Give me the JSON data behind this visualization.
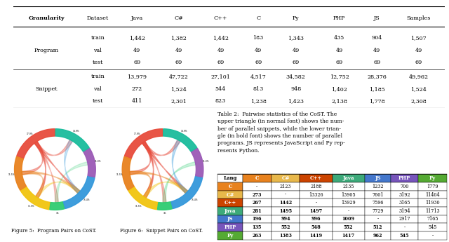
{
  "table1": {
    "title_row": [
      "Granularity",
      "Dataset",
      "Java",
      "C#",
      "C++",
      "C",
      "Py",
      "PHP",
      "JS",
      "Samples"
    ],
    "rows": [
      [
        "Program",
        "train",
        "1,442",
        "1,382",
        "1,442",
        "183",
        "1,343",
        "435",
        "904",
        "1,507"
      ],
      [
        "Program",
        "val",
        "49",
        "49",
        "49",
        "49",
        "49",
        "49",
        "49",
        "49"
      ],
      [
        "Program",
        "test",
        "69",
        "69",
        "69",
        "69",
        "69",
        "69",
        "69",
        "69"
      ],
      [
        "Snippet",
        "train",
        "13,979",
        "47,722",
        "27,101",
        "4,517",
        "34,582",
        "12,752",
        "28,376",
        "49,962"
      ],
      [
        "Snippet",
        "val",
        "272",
        "1,524",
        "544",
        "813",
        "948",
        "1,402",
        "1,185",
        "1,524"
      ],
      [
        "Snippet",
        "test",
        "411",
        "2,301",
        "823",
        "1,238",
        "1,423",
        "2,138",
        "1,778",
        "2,308"
      ]
    ]
  },
  "table2_caption": "Table 2:  Pairwise statistics of the CoST. The\nupper triangle (in normal font) shows the num-\nber of parallel snippets, while the lower trian-\ngle (in bold font) shows the number of parallel\nprograms. JS represents JavaScript and Py rep-\nresents Python.",
  "table2": {
    "header": [
      "Lang",
      "C",
      "C#",
      "C++",
      "Java",
      "JS",
      "PHP",
      "Py"
    ],
    "header_colors": [
      "#ffffff",
      "#e8821e",
      "#e8b84b",
      "#cc4400",
      "#3daa7a",
      "#4477cc",
      "#7755bb",
      "#55aa33"
    ],
    "row_labels": [
      "C",
      "C#",
      "C++",
      "Java",
      "JS",
      "PHP",
      "Py"
    ],
    "row_colors": [
      "#e8821e",
      "#e8b84b",
      "#cc4400",
      "#3daa7a",
      "#4477cc",
      "#7755bb",
      "#55aa33"
    ],
    "data": [
      [
        "-",
        "2123",
        "2188",
        "2135",
        "1232",
        "700",
        "1779"
      ],
      [
        "273",
        "-",
        "13326",
        "13905",
        "7601",
        "3192",
        "11404"
      ],
      [
        "267",
        "1442",
        "-",
        "13929",
        "7596",
        "3165",
        "11930"
      ],
      [
        "281",
        "1495",
        "1497",
        "-",
        "7729",
        "3194",
        "11713"
      ],
      [
        "196",
        "994",
        "996",
        "1009",
        "-",
        "2917",
        "7165"
      ],
      [
        "135",
        "552",
        "548",
        "552",
        "512",
        "-",
        "545"
      ],
      [
        "263",
        "1383",
        "1419",
        "1417",
        "962",
        "545",
        "-"
      ]
    ]
  },
  "fig5_caption": "Figure 5:  Program Pairs on CoST.",
  "fig6_caption": "Figure 6:  Snippet Pairs on CoST.",
  "chord5": {
    "seg_colors": [
      "#e74c3c",
      "#e8821e",
      "#f1c40f",
      "#2ecc71",
      "#3498db",
      "#9b59b6",
      "#1abc9c"
    ],
    "seg_sizes": [
      0.2,
      0.14,
      0.14,
      0.06,
      0.18,
      0.12,
      0.16
    ],
    "chords": [
      [
        0,
        2,
        "#e74c3c",
        0.5
      ],
      [
        0,
        1,
        "#e74c3c",
        0.4
      ],
      [
        0,
        4,
        "#e74c3c",
        0.45
      ],
      [
        0,
        6,
        "#e74c3c",
        0.35
      ],
      [
        0,
        3,
        "#e74c3c",
        0.3
      ],
      [
        1,
        2,
        "#e8821e",
        0.3
      ],
      [
        1,
        4,
        "#e8821e",
        0.35
      ],
      [
        2,
        4,
        "#f1c40f",
        0.3
      ],
      [
        3,
        5,
        "#2ecc71",
        0.2
      ],
      [
        4,
        6,
        "#3498db",
        0.25
      ]
    ]
  },
  "chord6": {
    "seg_colors": [
      "#e74c3c",
      "#e8821e",
      "#f1c40f",
      "#2ecc71",
      "#3498db",
      "#9b59b6",
      "#1abc9c"
    ],
    "seg_sizes": [
      0.2,
      0.14,
      0.14,
      0.06,
      0.18,
      0.12,
      0.16
    ],
    "chords": [
      [
        0,
        2,
        "#e74c3c",
        0.55
      ],
      [
        0,
        1,
        "#e74c3c",
        0.45
      ],
      [
        0,
        4,
        "#e74c3c",
        0.5
      ],
      [
        0,
        6,
        "#e74c3c",
        0.4
      ],
      [
        0,
        3,
        "#e74c3c",
        0.35
      ],
      [
        1,
        2,
        "#e8821e",
        0.4
      ],
      [
        1,
        4,
        "#e8821e",
        0.4
      ],
      [
        2,
        4,
        "#f1c40f",
        0.35
      ],
      [
        3,
        5,
        "#2ecc71",
        0.25
      ],
      [
        4,
        6,
        "#3498db",
        0.3
      ]
    ]
  }
}
